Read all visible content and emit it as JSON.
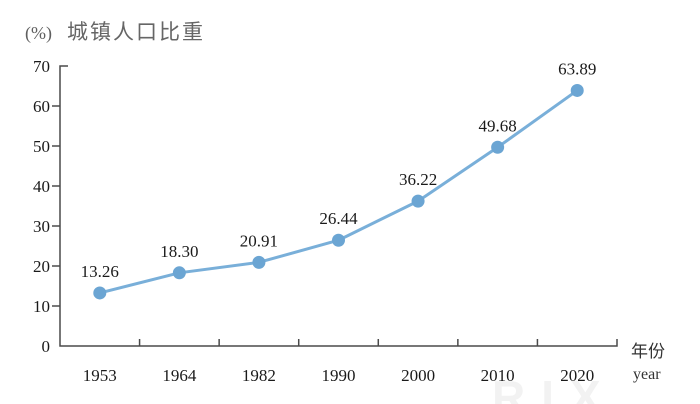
{
  "title": "城镇人口比重",
  "y_axis_unit": "(%)",
  "x_axis_label": "年份",
  "x_axis_label_en": "year",
  "watermark": "RIX",
  "colors": {
    "line": "#79afd9",
    "marker": "#6ba5d3",
    "axis": "#4a4a4a",
    "text": "#1a1a1a",
    "title": "#666666",
    "background": "#ffffff"
  },
  "chart_data": {
    "type": "line",
    "title": "城镇人口比重",
    "xlabel": "年份 (year)",
    "ylabel": "(%)",
    "categories": [
      "1953",
      "1964",
      "1982",
      "1990",
      "2000",
      "2010",
      "2020"
    ],
    "values": [
      13.26,
      18.3,
      20.91,
      26.44,
      36.22,
      49.68,
      63.89
    ],
    "value_labels": [
      "13.26",
      "18.30",
      "20.91",
      "26.44",
      "36.22",
      "49.68",
      "63.89"
    ],
    "ylim": [
      0,
      70
    ],
    "yticks": [
      0,
      10,
      20,
      30,
      40,
      50,
      60,
      70
    ],
    "grid": false,
    "legend": null,
    "marker": "circle"
  }
}
